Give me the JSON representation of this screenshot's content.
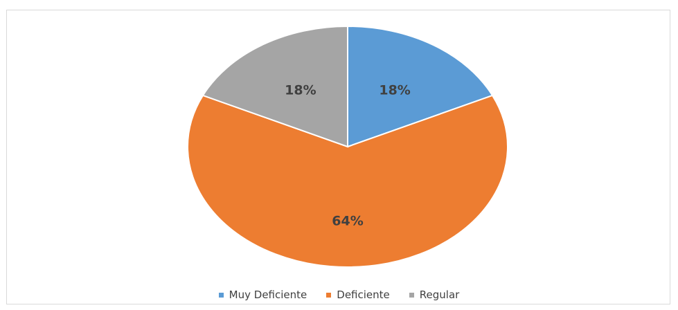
{
  "chart_data": {
    "type": "pie",
    "title": "",
    "categories": [
      "Muy Deficiente",
      "Deficiente",
      "Regular"
    ],
    "values": [
      18,
      64,
      18
    ],
    "data_labels": [
      "18%",
      "64%",
      "18%"
    ],
    "colors": [
      "#5b9bd5",
      "#ed7d31",
      "#a5a5a5"
    ],
    "start_angle_deg": 0,
    "direction": "clockwise",
    "legend_position": "bottom"
  }
}
